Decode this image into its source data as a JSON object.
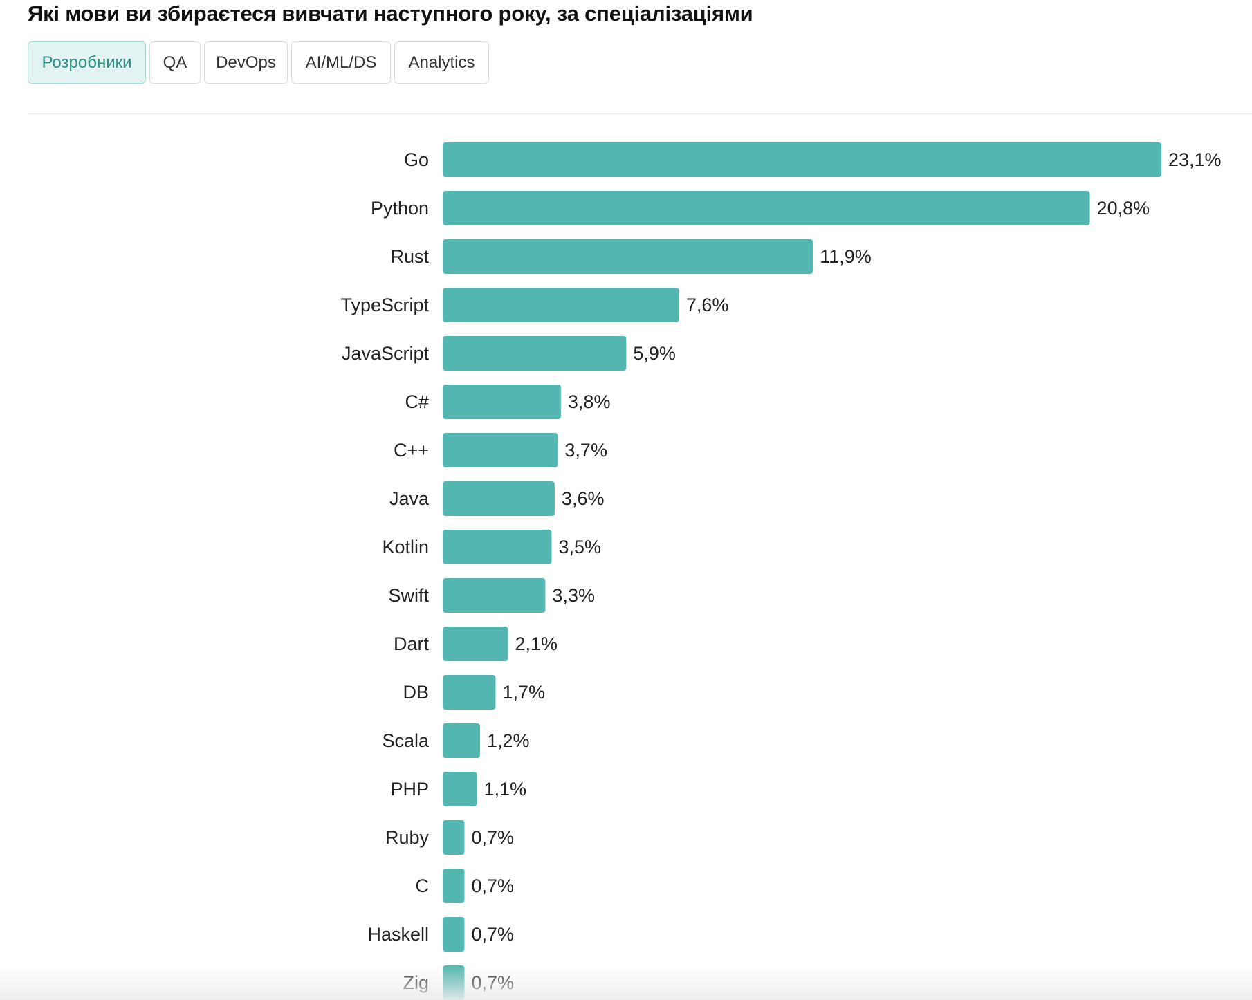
{
  "title": "Які мови ви збираєтеся вивчати наступного року, за спеціалізаціями",
  "tabs": [
    {
      "label": "Розробники",
      "active": true
    },
    {
      "label": "QA",
      "active": false
    },
    {
      "label": "DevOps",
      "active": false
    },
    {
      "label": "AI/ML/DS",
      "active": false
    },
    {
      "label": "Analytics",
      "active": false
    }
  ],
  "colors": {
    "bar": "#54b6b0",
    "active_tab_bg": "#e2f3f1",
    "active_tab_text": "#2c8f84"
  },
  "chart_data": {
    "type": "bar",
    "orientation": "horizontal",
    "categories": [
      "Go",
      "Python",
      "Rust",
      "TypeScript",
      "JavaScript",
      "C#",
      "C++",
      "Java",
      "Kotlin",
      "Swift",
      "Dart",
      "DB",
      "Scala",
      "PHP",
      "Ruby",
      "C",
      "Haskell",
      "Zig"
    ],
    "values": [
      23.1,
      20.8,
      11.9,
      7.6,
      5.9,
      3.8,
      3.7,
      3.6,
      3.5,
      3.3,
      2.1,
      1.7,
      1.2,
      1.1,
      0.7,
      0.7,
      0.7,
      0.7
    ],
    "value_labels": [
      "23,1%",
      "20,8%",
      "11,9%",
      "7,6%",
      "5,9%",
      "3,8%",
      "3,7%",
      "3,6%",
      "3,5%",
      "3,3%",
      "2,1%",
      "1,7%",
      "1,2%",
      "1,1%",
      "0,7%",
      "0,7%",
      "0,7%",
      "0,7%"
    ],
    "unit": "%",
    "grid": false,
    "legend": "none"
  }
}
